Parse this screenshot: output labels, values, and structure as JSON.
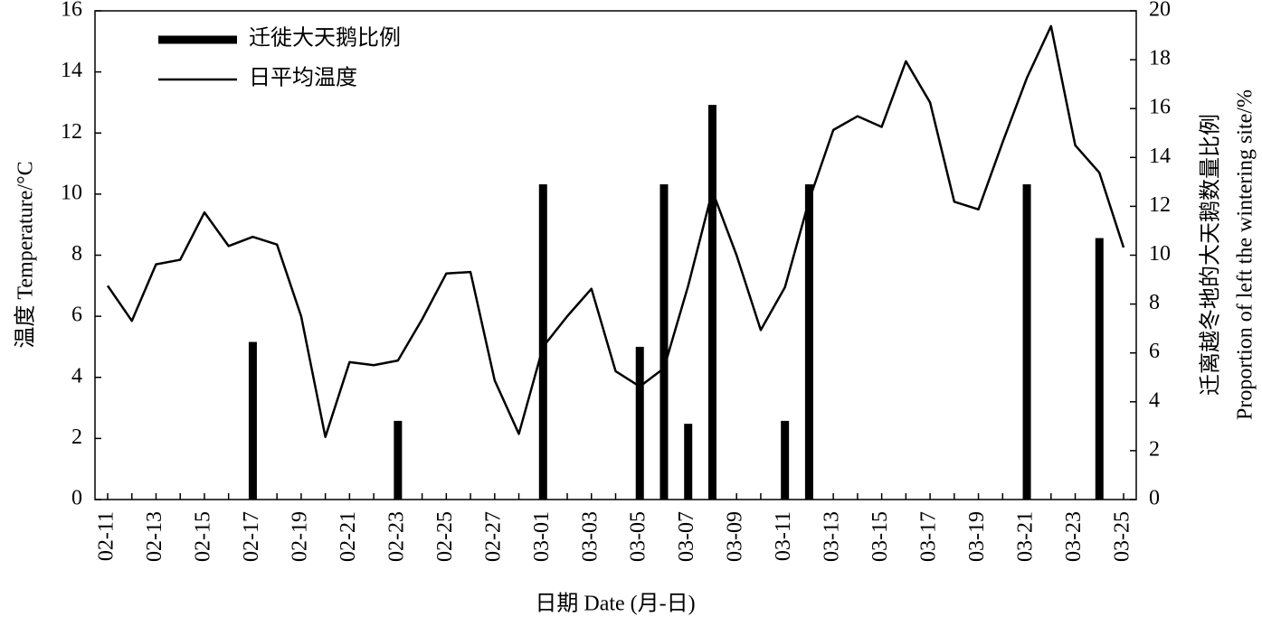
{
  "chart_data": {
    "type": "bar",
    "xlabel": "日期 Date (月-日)",
    "ylabel": "温度 Temperature/°C",
    "y2label": [
      "迁离越冬地的大天鹅数量比例",
      "Proportion of left the wintering site/%"
    ],
    "categories": [
      "02-11",
      null,
      "02-13",
      null,
      "02-15",
      null,
      "02-17",
      null,
      "02-19",
      null,
      "02-21",
      null,
      "02-23",
      null,
      "02-25",
      null,
      "02-27",
      null,
      "03-01",
      null,
      "03-03",
      null,
      "03-05",
      null,
      "03-07",
      null,
      "03-09",
      null,
      "03-11",
      null,
      "03-13",
      null,
      "03-15",
      null,
      "03-17",
      null,
      "03-19",
      null,
      "03-21",
      null,
      "03-23",
      null,
      "03-25"
    ],
    "ylim": [
      0,
      16
    ],
    "yticks": [
      0,
      2,
      4,
      6,
      8,
      10,
      12,
      14,
      16
    ],
    "y2lim": [
      0,
      20
    ],
    "y2ticks": [
      0,
      2,
      4,
      6,
      8,
      10,
      12,
      14,
      16,
      18,
      20
    ],
    "legend": "upper left",
    "series": [
      {
        "name": "迁徙大天鹅比例",
        "type": "bar",
        "axis": "y2",
        "color": "#000000",
        "values": [
          null,
          null,
          null,
          null,
          null,
          null,
          6.45,
          null,
          null,
          null,
          null,
          null,
          3.22,
          null,
          null,
          null,
          null,
          null,
          12.9,
          null,
          null,
          null,
          6.25,
          12.9,
          3.1,
          16.15,
          null,
          null,
          3.22,
          12.9,
          null,
          null,
          null,
          null,
          null,
          null,
          null,
          null,
          12.9,
          null,
          null,
          10.7,
          null
        ]
      },
      {
        "name": "日平均温度",
        "type": "line",
        "color": "#000000",
        "values": [
          7.0,
          5.85,
          7.7,
          7.85,
          9.4,
          8.3,
          8.6,
          8.35,
          6.0,
          2.05,
          4.5,
          4.4,
          4.55,
          5.9,
          7.4,
          7.45,
          3.9,
          2.15,
          5.0,
          6.0,
          6.9,
          4.2,
          3.7,
          4.3,
          7.0,
          10.1,
          8.0,
          5.55,
          6.95,
          9.8,
          12.1,
          12.55,
          12.2,
          14.35,
          13.0,
          9.75,
          9.5,
          11.7,
          13.8,
          15.5,
          11.6,
          10.7,
          8.25
        ]
      }
    ]
  }
}
